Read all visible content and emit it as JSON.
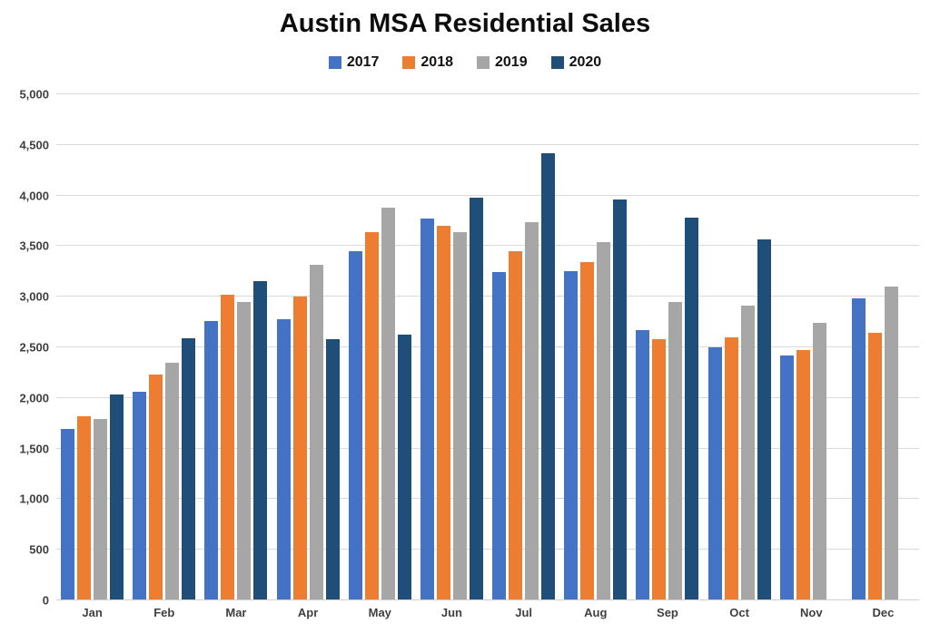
{
  "chart_data": {
    "type": "bar",
    "title": "Austin MSA Residential Sales",
    "categories": [
      "Jan",
      "Feb",
      "Mar",
      "Apr",
      "May",
      "Jun",
      "Jul",
      "Aug",
      "Sep",
      "Oct",
      "Nov",
      "Dec"
    ],
    "series": [
      {
        "name": "2017",
        "color": "#4472C4",
        "values": [
          1690,
          2060,
          2760,
          2780,
          3450,
          3770,
          3240,
          3250,
          2670,
          2500,
          2420,
          2980
        ]
      },
      {
        "name": "2018",
        "color": "#ED7D31",
        "values": [
          1820,
          2230,
          3020,
          3000,
          3640,
          3700,
          3450,
          3340,
          2580,
          2600,
          2470,
          2640
        ]
      },
      {
        "name": "2019",
        "color": "#A6A6A6",
        "values": [
          1790,
          2350,
          2950,
          3320,
          3880,
          3640,
          3740,
          3540,
          2950,
          2910,
          2740,
          3100
        ]
      },
      {
        "name": "2020",
        "color": "#1F4E79",
        "values": [
          2030,
          2590,
          3150,
          2580,
          2630,
          3980,
          4420,
          3960,
          3780,
          3570,
          null,
          null
        ]
      }
    ],
    "xlabel": "",
    "ylabel": "",
    "ylim": [
      0,
      5000
    ],
    "ytick_interval": 500,
    "ytick_labels": [
      "0",
      "500",
      "1,000",
      "1,500",
      "2,000",
      "2,500",
      "3,000",
      "3,500",
      "4,000",
      "4,500",
      "5,000"
    ],
    "grid": true,
    "legend_position": "top",
    "colors": {
      "gridline": "#D9D9D9",
      "axis_label": "#404040",
      "title": "#0D0D0D"
    }
  }
}
